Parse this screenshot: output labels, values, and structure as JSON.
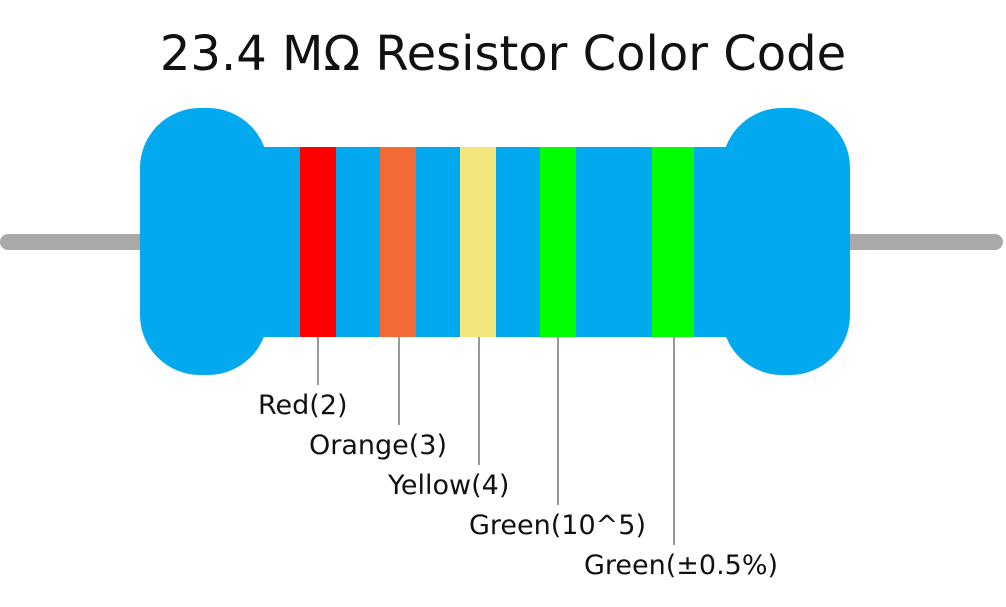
{
  "title": "23.4 MΩ Resistor Color Code",
  "colors": {
    "body": "#03a9ee",
    "lead": "#a9a9a9",
    "leader_line": "#555555"
  },
  "bands": [
    {
      "name": "band-1",
      "color": "#ff0000",
      "label": "Red(2)"
    },
    {
      "name": "band-2",
      "color": "#f26b35",
      "label": "Orange(3)"
    },
    {
      "name": "band-3",
      "color": "#f2e57a",
      "label": "Yellow(4)"
    },
    {
      "name": "band-4",
      "color": "#00ff00",
      "label": "Green(10^5)"
    },
    {
      "name": "band-5",
      "color": "#00ff00",
      "label": "Green(±0.5%)"
    }
  ]
}
